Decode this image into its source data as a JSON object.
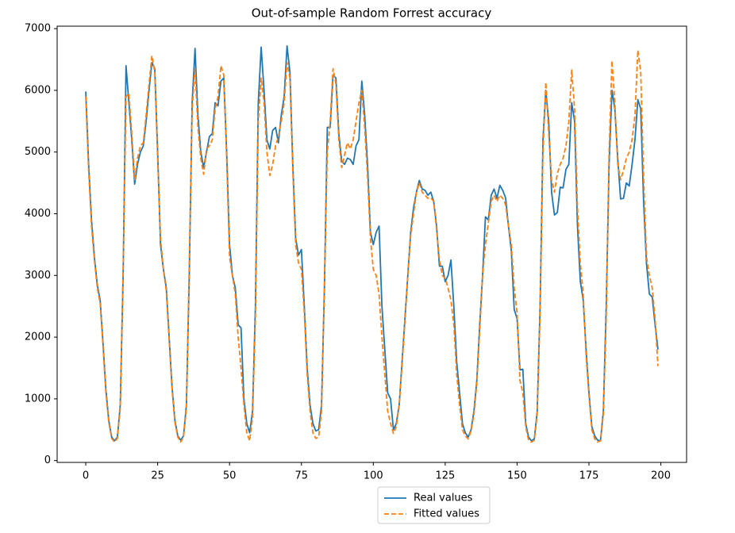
{
  "chart_data": {
    "type": "line",
    "title": "Out-of-sample Random Forrest accuracy",
    "x": [
      0,
      1,
      2,
      3,
      4,
      5,
      6,
      7,
      8,
      9,
      10,
      11,
      12,
      13,
      14,
      15,
      16,
      17,
      18,
      19,
      20,
      21,
      22,
      23,
      24,
      25,
      26,
      27,
      28,
      29,
      30,
      31,
      32,
      33,
      34,
      35,
      36,
      37,
      38,
      39,
      40,
      41,
      42,
      43,
      44,
      45,
      46,
      47,
      48,
      49,
      50,
      51,
      52,
      53,
      54,
      55,
      56,
      57,
      58,
      59,
      60,
      61,
      62,
      63,
      64,
      65,
      66,
      67,
      68,
      69,
      70,
      71,
      72,
      73,
      74,
      75,
      76,
      77,
      78,
      79,
      80,
      81,
      82,
      83,
      84,
      85,
      86,
      87,
      88,
      89,
      90,
      91,
      92,
      93,
      94,
      95,
      96,
      97,
      98,
      99,
      100,
      101,
      102,
      103,
      104,
      105,
      106,
      107,
      108,
      109,
      110,
      111,
      112,
      113,
      114,
      115,
      116,
      117,
      118,
      119,
      120,
      121,
      122,
      123,
      124,
      125,
      126,
      127,
      128,
      129,
      130,
      131,
      132,
      133,
      134,
      135,
      136,
      137,
      138,
      139,
      140,
      141,
      142,
      143,
      144,
      145,
      146,
      147,
      148,
      149,
      150,
      151,
      152,
      153,
      154,
      155,
      156,
      157,
      158,
      159,
      160,
      161,
      162,
      163,
      164,
      165,
      166,
      167,
      168,
      169,
      170,
      171,
      172,
      173,
      174,
      175,
      176,
      177,
      178,
      179,
      180,
      181,
      182,
      183,
      184,
      185,
      186,
      187,
      188,
      189,
      190,
      191,
      192,
      193,
      194,
      195,
      196,
      197,
      198,
      199
    ],
    "series": [
      {
        "name": "Real values",
        "color": "#1f77b4",
        "dash": false,
        "values": [
          5980,
          4800,
          3900,
          3300,
          2850,
          2600,
          1900,
          1150,
          650,
          380,
          320,
          380,
          900,
          3000,
          6400,
          5800,
          5200,
          4480,
          4800,
          5000,
          5100,
          5500,
          6000,
          6450,
          6350,
          5000,
          3500,
          3100,
          2800,
          2000,
          1200,
          650,
          400,
          330,
          400,
          900,
          3000,
          5800,
          6680,
          5600,
          5000,
          4750,
          5000,
          5250,
          5300,
          5800,
          5750,
          6150,
          6200,
          5000,
          3500,
          3000,
          2800,
          2200,
          2150,
          1000,
          600,
          450,
          800,
          2500,
          5800,
          6700,
          6000,
          5200,
          5050,
          5350,
          5400,
          5150,
          5600,
          5900,
          6720,
          6300,
          4800,
          3600,
          3330,
          3420,
          2500,
          1500,
          900,
          600,
          480,
          500,
          900,
          2800,
          5400,
          5400,
          6250,
          6200,
          5300,
          4850,
          4800,
          4900,
          4880,
          4800,
          5100,
          5200,
          6150,
          5600,
          4800,
          3700,
          3500,
          3700,
          3800,
          2500,
          1800,
          1100,
          1000,
          500,
          600,
          900,
          1600,
          2300,
          3000,
          3700,
          4100,
          4350,
          4540,
          4400,
          4380,
          4300,
          4350,
          4200,
          3800,
          3150,
          3150,
          2900,
          3000,
          3250,
          2500,
          1600,
          1100,
          600,
          450,
          380,
          500,
          800,
          1300,
          2200,
          3000,
          3950,
          3900,
          4300,
          4400,
          4250,
          4460,
          4380,
          4260,
          3800,
          3400,
          2450,
          2300,
          1470,
          1480,
          600,
          380,
          320,
          350,
          800,
          2500,
          5200,
          6000,
          5500,
          4350,
          3980,
          4020,
          4430,
          4420,
          4720,
          4800,
          5800,
          5500,
          3800,
          2900,
          2600,
          1800,
          1100,
          550,
          400,
          330,
          320,
          800,
          2500,
          4800,
          6000,
          5700,
          4900,
          4240,
          4250,
          4500,
          4450,
          4800,
          5200,
          5850,
          5700,
          4200,
          3200,
          2700,
          2650,
          2200,
          1800
        ]
      },
      {
        "name": "Fitted values",
        "color": "#ff7f0e",
        "dash": true,
        "values": [
          5900,
          4700,
          3800,
          3250,
          2800,
          2550,
          1850,
          1100,
          620,
          360,
          300,
          360,
          850,
          3100,
          5900,
          5950,
          5300,
          4550,
          4900,
          5100,
          5150,
          5600,
          6100,
          6560,
          6300,
          4900,
          3600,
          3100,
          2750,
          1950,
          1150,
          620,
          380,
          300,
          380,
          850,
          3200,
          5700,
          6350,
          5400,
          4900,
          4640,
          5050,
          5100,
          5200,
          5700,
          5900,
          6400,
          6250,
          4900,
          3300,
          3000,
          2700,
          2000,
          1500,
          900,
          450,
          320,
          700,
          2300,
          5500,
          6200,
          5800,
          5000,
          4620,
          4800,
          5100,
          5250,
          5500,
          5800,
          6450,
          6200,
          4700,
          3500,
          3200,
          3100,
          2400,
          1400,
          800,
          450,
          360,
          380,
          800,
          2900,
          5000,
          5500,
          6350,
          6100,
          5200,
          4750,
          4950,
          5150,
          5050,
          5200,
          5500,
          5800,
          6000,
          5400,
          4600,
          3600,
          3100,
          3000,
          2700,
          2000,
          1400,
          800,
          600,
          440,
          550,
          900,
          1550,
          2250,
          3000,
          3650,
          4000,
          4350,
          4500,
          4350,
          4300,
          4250,
          4260,
          4200,
          3750,
          3250,
          3000,
          2950,
          2800,
          2600,
          2200,
          1400,
          900,
          500,
          400,
          350,
          480,
          750,
          1250,
          2100,
          3000,
          3500,
          3850,
          4200,
          4300,
          4200,
          4300,
          4250,
          4150,
          3800,
          3500,
          2800,
          2400,
          1300,
          1100,
          550,
          330,
          300,
          330,
          750,
          2400,
          5000,
          6130,
          5300,
          4550,
          4350,
          4650,
          4800,
          4900,
          5100,
          5500,
          6330,
          5700,
          4100,
          3200,
          2700,
          1700,
          1050,
          500,
          350,
          300,
          320,
          750,
          2300,
          5000,
          6480,
          5800,
          4800,
          4550,
          4700,
          4900,
          5000,
          5200,
          5600,
          6650,
          6300,
          4600,
          3300,
          3000,
          2800,
          2300,
          1530
        ]
      }
    ],
    "xlim": [
      -9.95,
      208.95
    ],
    "xticks": [
      0,
      25,
      50,
      75,
      100,
      125,
      150,
      175,
      200
    ],
    "ylim": [
      -30,
      7040
    ],
    "yticks": [
      0,
      1000,
      2000,
      3000,
      4000,
      5000,
      6000,
      7000
    ],
    "grid": false,
    "legend": "lower center outside"
  }
}
